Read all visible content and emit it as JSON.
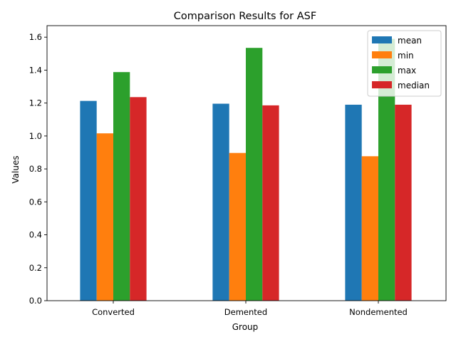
{
  "chart_data": {
    "type": "bar",
    "title": "Comparison Results for ASF",
    "xlabel": "Group",
    "ylabel": "Values",
    "categories": [
      "Converted",
      "Demented",
      "Nondemented"
    ],
    "series": [
      {
        "name": "mean",
        "color": "#1f77b4",
        "values": [
          1.213,
          1.196,
          1.19
        ]
      },
      {
        "name": "min",
        "color": "#ff7f0e",
        "values": [
          1.016,
          0.897,
          0.877
        ]
      },
      {
        "name": "max",
        "color": "#2ca02c",
        "values": [
          1.388,
          1.535,
          1.59
        ]
      },
      {
        "name": "median",
        "color": "#d62728",
        "values": [
          1.236,
          1.186,
          1.19
        ]
      }
    ],
    "ylim": [
      0,
      1.67
    ],
    "yticks": [
      "0.0",
      "0.2",
      "0.4",
      "0.6",
      "0.8",
      "1.0",
      "1.2",
      "1.4",
      "1.6"
    ],
    "grid": false,
    "legend_position": "top-right"
  }
}
